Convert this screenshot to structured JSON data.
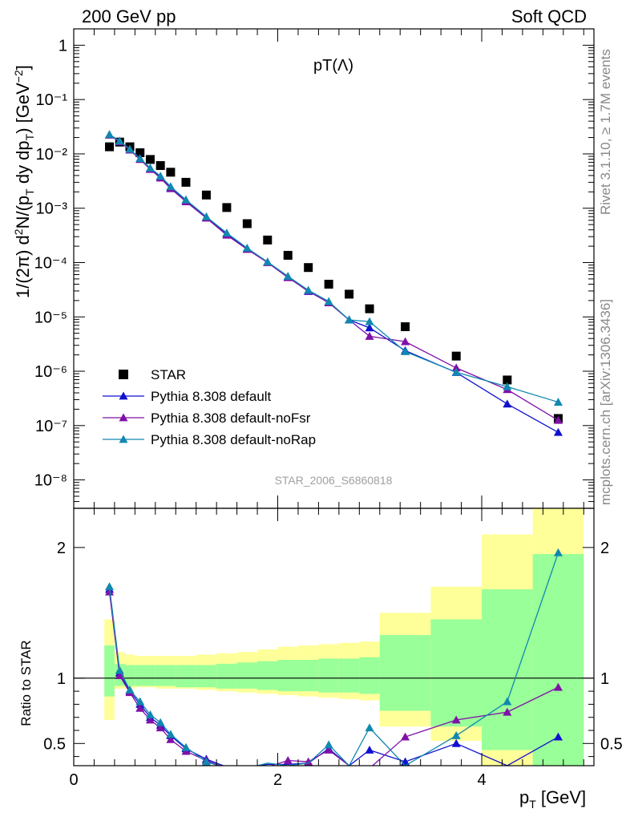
{
  "header": {
    "left": "200 GeV pp",
    "right": "Soft QCD"
  },
  "side_text": {
    "rivet": "Rivet 3.1.10, ≥ 1.7M events",
    "source": "mcplots.cern.ch [arXiv:1306.3436]"
  },
  "chart_data": [
    {
      "type": "scatter",
      "title": "pT(Λ)",
      "watermark": "STAR_2006_S6860818",
      "ylabel": "1/(2π) d²N/(p_T dy dp_T) [GeV⁻²]",
      "xlim": [
        0,
        5.1
      ],
      "ylim": [
        3e-09,
        2
      ],
      "yscale": "log",
      "yticks": [
        "10⁻⁸",
        "10⁻⁷",
        "10⁻⁶",
        "10⁻⁵",
        "10⁻⁴",
        "10⁻³",
        "10⁻²",
        "10⁻¹",
        "1"
      ],
      "legend_position": "bottom-left",
      "series": [
        {
          "name": "STAR",
          "color": "#000000",
          "marker": "square",
          "x": [
            0.35,
            0.45,
            0.55,
            0.65,
            0.75,
            0.85,
            0.95,
            1.1,
            1.3,
            1.5,
            1.7,
            1.9,
            2.1,
            2.3,
            2.5,
            2.7,
            2.9,
            3.25,
            3.75,
            4.25,
            4.75
          ],
          "y": [
            0.0135,
            0.0165,
            0.0135,
            0.0105,
            0.0079,
            0.0061,
            0.0046,
            0.003,
            0.00175,
            0.00103,
            0.00052,
            0.00026,
            0.000136,
            8.1e-05,
            4e-05,
            2.62e-05,
            1.41e-05,
            6.6e-06,
            1.9e-06,
            6.9e-07,
            1.35e-07
          ]
        },
        {
          "name": "Pythia 8.308 default",
          "color": "#1010d0",
          "marker": "triangle",
          "x": [
            0.35,
            0.45,
            0.55,
            0.65,
            0.75,
            0.85,
            0.95,
            1.1,
            1.3,
            1.5,
            1.7,
            1.9,
            2.1,
            2.3,
            2.5,
            2.7,
            2.9,
            3.25,
            3.75,
            4.25,
            4.75
          ],
          "y": [
            0.0225,
            0.0172,
            0.0121,
            0.0082,
            0.0054,
            0.0038,
            0.0024,
            0.0014,
            0.00068,
            0.00034,
            0.00018,
            0.000102,
            5.4e-05,
            2.95e-05,
            1.85e-05,
            8.8e-06,
            6.3e-06,
            2.4e-06,
            9.5e-07,
            2.5e-07,
            7.5e-08
          ]
        },
        {
          "name": "Pythia 8.308 default-noFsr",
          "color": "#8010a8",
          "marker": "triangle",
          "x": [
            0.35,
            0.45,
            0.55,
            0.65,
            0.75,
            0.85,
            0.95,
            1.1,
            1.3,
            1.5,
            1.7,
            1.9,
            2.1,
            2.3,
            2.5,
            2.7,
            2.9,
            3.25,
            3.75,
            4.25,
            4.75
          ],
          "y": [
            0.0222,
            0.0168,
            0.0118,
            0.0079,
            0.0052,
            0.0036,
            0.0023,
            0.00132,
            0.00066,
            0.00032,
            0.000175,
            0.0001,
            5.3e-05,
            3e-05,
            1.82e-05,
            8.8e-06,
            4.4e-06,
            3.5e-06,
            1.15e-06,
            4.6e-07,
            1.25e-07
          ]
        },
        {
          "name": "Pythia 8.308 default-noRap",
          "color": "#1088b0",
          "marker": "triangle",
          "x": [
            0.35,
            0.45,
            0.55,
            0.65,
            0.75,
            0.85,
            0.95,
            1.1,
            1.3,
            1.5,
            1.7,
            1.9,
            2.1,
            2.3,
            2.5,
            2.7,
            2.9,
            3.25,
            3.75,
            4.25,
            4.75
          ],
          "y": [
            0.0228,
            0.0173,
            0.0122,
            0.0082,
            0.0055,
            0.0039,
            0.0025,
            0.00143,
            0.0007,
            0.00035,
            0.000185,
            0.000103,
            5.6e-05,
            3.1e-05,
            1.92e-05,
            8.8e-06,
            8.2e-06,
            2.3e-06,
            9.6e-07,
            5.2e-07,
            2.7e-07
          ]
        }
      ]
    },
    {
      "type": "line",
      "ylabel": "Ratio to STAR",
      "xlabel": "p_T [GeV]",
      "xlim": [
        0,
        5.1
      ],
      "ylim": [
        0.33,
        2.3
      ],
      "xticks": [
        0,
        2,
        4
      ],
      "yticks": [
        0.5,
        1,
        2
      ],
      "reference_line": 1,
      "bands": {
        "bin_edges": [
          0.3,
          0.4,
          0.5,
          0.6,
          0.7,
          0.8,
          0.9,
          1.0,
          1.2,
          1.4,
          1.6,
          1.8,
          2.0,
          2.2,
          2.4,
          2.6,
          2.8,
          3.0,
          3.5,
          4.0,
          4.5,
          5.0
        ],
        "yellow_hi": [
          1.45,
          1.2,
          1.18,
          1.17,
          1.17,
          1.17,
          1.17,
          1.17,
          1.18,
          1.19,
          1.2,
          1.22,
          1.24,
          1.25,
          1.26,
          1.27,
          1.28,
          1.5,
          1.7,
          2.1,
          2.55
        ],
        "yellow_lo": [
          0.68,
          0.92,
          0.92,
          0.93,
          0.93,
          0.92,
          0.92,
          0.92,
          0.91,
          0.9,
          0.89,
          0.88,
          0.87,
          0.86,
          0.85,
          0.84,
          0.83,
          0.63,
          0.52,
          0.32,
          0.3
        ],
        "green_hi": [
          1.25,
          1.11,
          1.1,
          1.1,
          1.1,
          1.1,
          1.1,
          1.1,
          1.1,
          1.11,
          1.12,
          1.13,
          1.14,
          1.14,
          1.15,
          1.15,
          1.16,
          1.33,
          1.45,
          1.68,
          1.95
        ],
        "green_lo": [
          0.86,
          0.94,
          0.94,
          0.94,
          0.94,
          0.94,
          0.94,
          0.93,
          0.93,
          0.92,
          0.92,
          0.91,
          0.9,
          0.9,
          0.89,
          0.89,
          0.88,
          0.75,
          0.63,
          0.45,
          0.3
        ]
      },
      "series": [
        {
          "name": "Pythia 8.308 default",
          "color": "#1010d0",
          "x": [
            0.35,
            0.45,
            0.55,
            0.65,
            0.75,
            0.85,
            0.95,
            1.1,
            1.3,
            1.5,
            1.7,
            1.9,
            2.1,
            2.3,
            2.5,
            2.7,
            2.9,
            3.25,
            3.75,
            4.25,
            4.75
          ],
          "y": [
            1.68,
            1.04,
            0.9,
            0.8,
            0.7,
            0.64,
            0.56,
            0.46,
            0.38,
            0.32,
            0.32,
            0.34,
            0.34,
            0.35,
            0.46,
            0.33,
            0.45,
            0.36,
            0.5,
            0.33,
            0.55
          ]
        },
        {
          "name": "Pythia 8.308 default-noFsr",
          "color": "#8010a8",
          "x": [
            0.35,
            0.45,
            0.55,
            0.65,
            0.75,
            0.85,
            0.95,
            1.1,
            1.3,
            1.5,
            1.7,
            1.9,
            2.1,
            2.3,
            2.5,
            2.7,
            2.9,
            3.25,
            3.75,
            4.25,
            4.75
          ],
          "y": [
            1.66,
            1.02,
            0.89,
            0.77,
            0.68,
            0.62,
            0.53,
            0.44,
            0.37,
            0.31,
            0.31,
            0.32,
            0.37,
            0.36,
            0.45,
            0.33,
            0.31,
            0.55,
            0.68,
            0.74,
            0.93
          ]
        },
        {
          "name": "Pythia 8.308 default-noRap",
          "color": "#1088b0",
          "x": [
            0.35,
            0.45,
            0.55,
            0.65,
            0.75,
            0.85,
            0.95,
            1.1,
            1.3,
            1.5,
            1.7,
            1.9,
            2.1,
            2.3,
            2.5,
            2.7,
            2.9,
            3.25,
            3.75,
            4.25,
            4.75
          ],
          "y": [
            1.7,
            1.06,
            0.91,
            0.82,
            0.72,
            0.66,
            0.57,
            0.47,
            0.36,
            0.31,
            0.31,
            0.35,
            0.33,
            0.35,
            0.49,
            0.33,
            0.62,
            0.33,
            0.56,
            0.82,
            1.96
          ]
        }
      ]
    }
  ]
}
